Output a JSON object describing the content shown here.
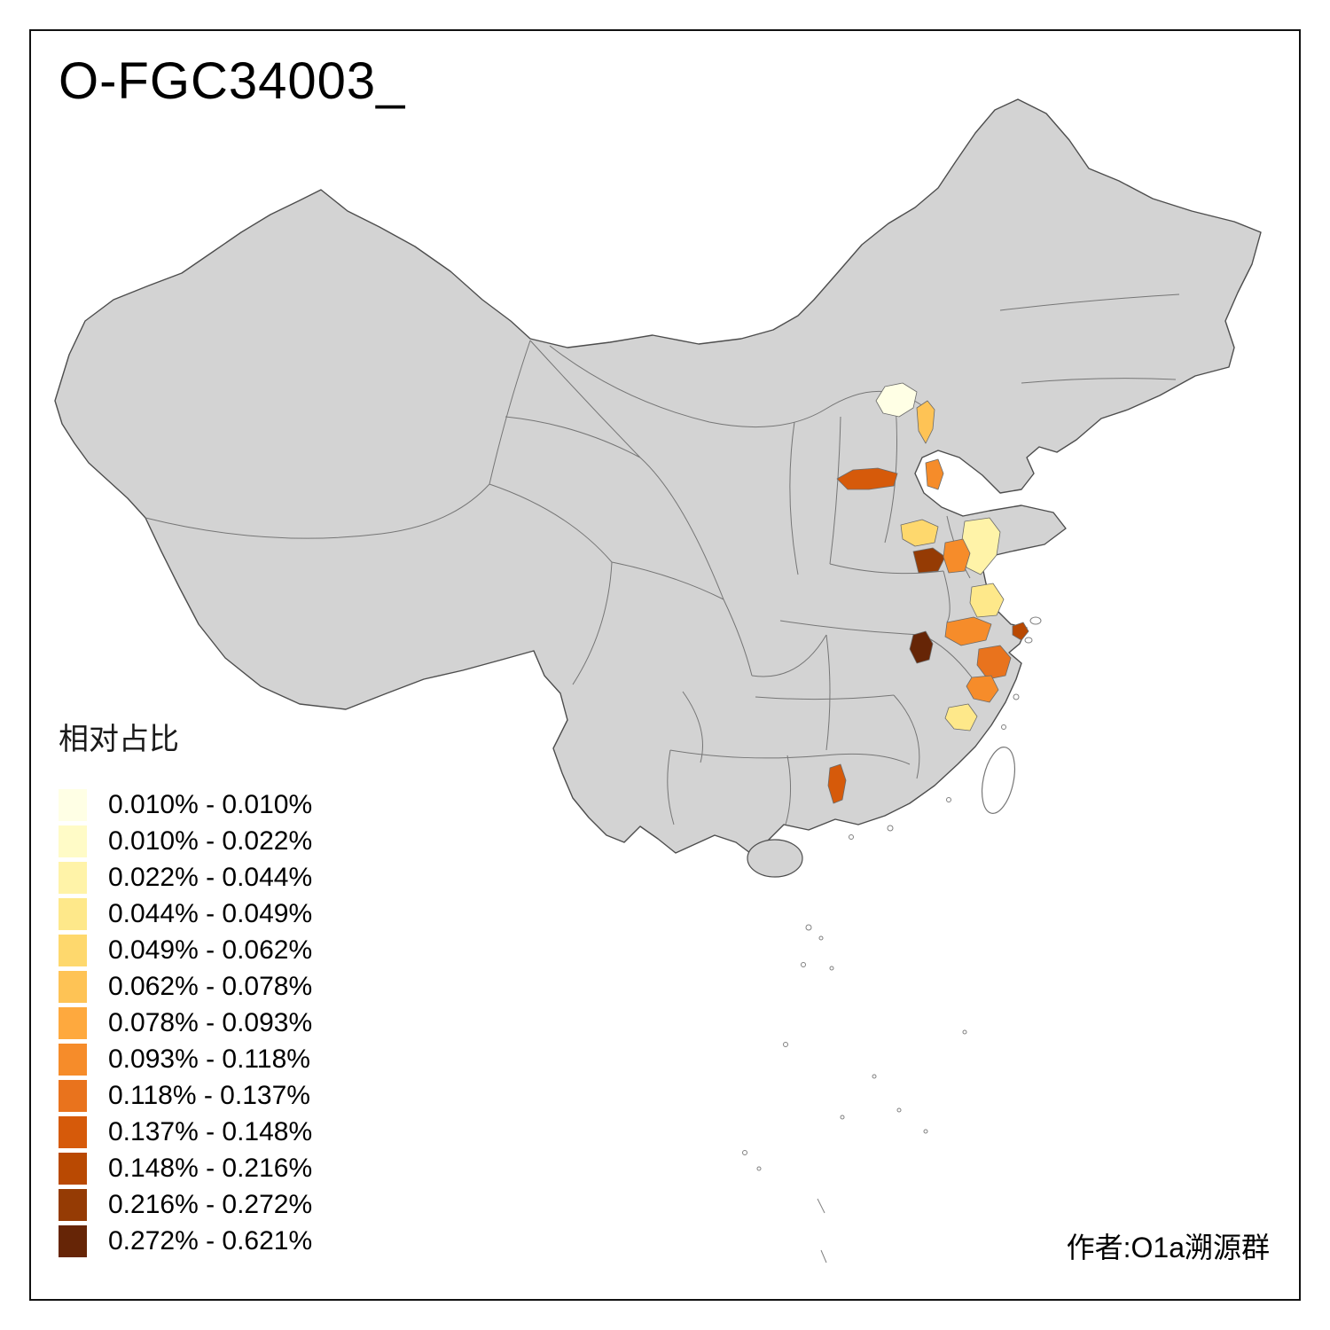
{
  "title": "O-FGC34003_",
  "credit": "作者:O1a溯源群",
  "legend": {
    "title": "相对占比",
    "bins": [
      {
        "label": "0.010% - 0.010%",
        "color": "#FFFFE5"
      },
      {
        "label": "0.010% - 0.022%",
        "color": "#FFFBC7"
      },
      {
        "label": "0.022% - 0.044%",
        "color": "#FFF3A8"
      },
      {
        "label": "0.044% - 0.049%",
        "color": "#FEE88A"
      },
      {
        "label": "0.049% - 0.062%",
        "color": "#FED86D"
      },
      {
        "label": "0.062% - 0.078%",
        "color": "#FEC355"
      },
      {
        "label": "0.078% - 0.093%",
        "color": "#FEA93E"
      },
      {
        "label": "0.093% - 0.118%",
        "color": "#F68C2A"
      },
      {
        "label": "0.118% - 0.137%",
        "color": "#E9731D"
      },
      {
        "label": "0.137% - 0.148%",
        "color": "#D65A0A"
      },
      {
        "label": "0.148% - 0.216%",
        "color": "#B94902"
      },
      {
        "label": "0.216% - 0.272%",
        "color": "#953B04"
      },
      {
        "label": "0.272% - 0.621%",
        "color": "#662506"
      }
    ]
  },
  "map": {
    "land_color": "#D3D3D3",
    "boundary_color": "#4D4D4D",
    "province_line_color": "#767676",
    "island_color": "#FFFFFF",
    "patches": [
      {
        "name": "region-1",
        "color": "#FFFFE5"
      },
      {
        "name": "region-2",
        "color": "#FEC355"
      },
      {
        "name": "region-3",
        "color": "#D65A0A"
      },
      {
        "name": "region-4",
        "color": "#F68C2A"
      },
      {
        "name": "region-5",
        "color": "#FED86D"
      },
      {
        "name": "region-6",
        "color": "#FFF3A8"
      },
      {
        "name": "region-7",
        "color": "#953B04"
      },
      {
        "name": "region-8",
        "color": "#F68C2A"
      },
      {
        "name": "region-9",
        "color": "#FEE88A"
      },
      {
        "name": "region-10",
        "color": "#F68C2A"
      },
      {
        "name": "region-11",
        "color": "#B94902"
      },
      {
        "name": "region-12",
        "color": "#662506"
      },
      {
        "name": "region-13",
        "color": "#E9731D"
      },
      {
        "name": "region-14",
        "color": "#F68C2A"
      },
      {
        "name": "region-15",
        "color": "#FEE88A"
      },
      {
        "name": "region-16",
        "color": "#D65A0A"
      }
    ]
  }
}
